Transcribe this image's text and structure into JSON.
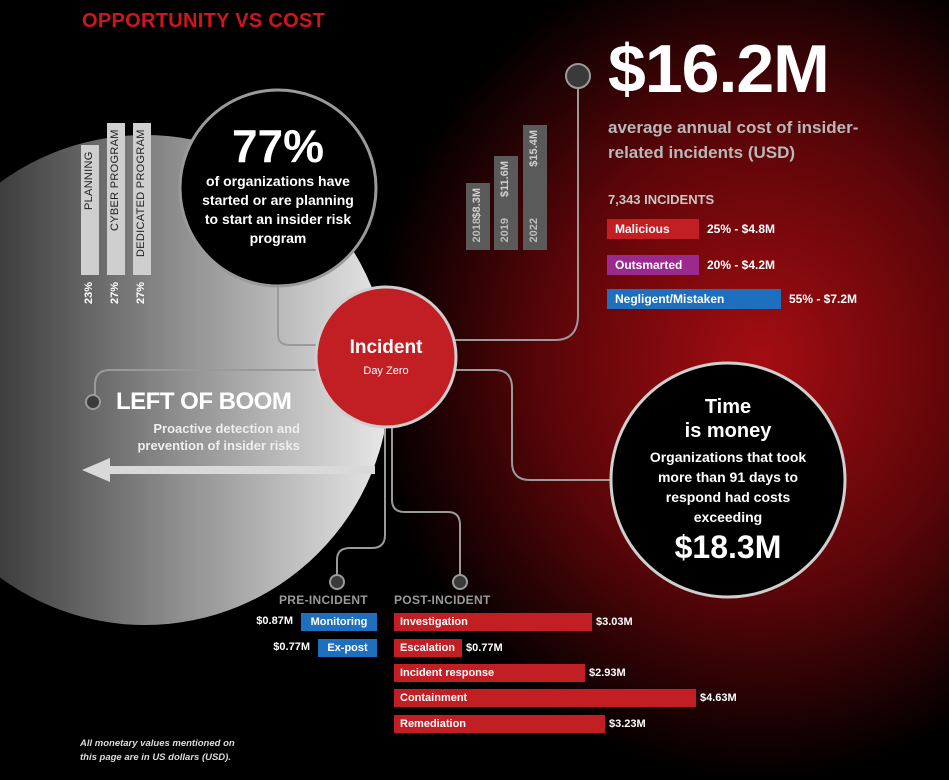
{
  "title": "OPPORTUNITY VS COST",
  "program_bars": [
    {
      "label": "PLANNING",
      "pct": "23%",
      "value": 23
    },
    {
      "label": "CYBER PROGRAM",
      "pct": "27%",
      "value": 27
    },
    {
      "label": "DEDICATED PROGRAM",
      "pct": "27%",
      "value": 27
    }
  ],
  "stat_circle": {
    "number": "77%",
    "text": "of organizations have started or are planning to start an insider risk program"
  },
  "year_bars": [
    {
      "year": "2018",
      "value_label": "$8.3M",
      "value": 8.3
    },
    {
      "year": "2019",
      "value_label": "$11.6M",
      "value": 11.6
    },
    {
      "year": "2022",
      "value_label": "$15.4M",
      "value": 15.4
    }
  ],
  "headline": {
    "amount": "$16.2M",
    "caption": "average annual cost of insider-related incidents (USD)"
  },
  "incident_breakdown": {
    "heading": "7,343 INCIDENTS",
    "items": [
      {
        "label": "Malicious",
        "value_text": "25% - $4.8M",
        "pct": 25,
        "color": "#c21f25"
      },
      {
        "label": "Outsmarted",
        "value_text": "20% - $4.2M",
        "pct": 20,
        "color": "#9b2a8f"
      },
      {
        "label": "Negligent/Mistaken",
        "value_text": "55% - $7.2M",
        "pct": 55,
        "color": "#1f6fbf"
      }
    ]
  },
  "incident_circle": {
    "title": "Incident",
    "subtitle": "Day Zero"
  },
  "left_of_boom": {
    "title": "LEFT OF BOOM",
    "text": "Proactive detection and prevention of insider risks"
  },
  "time_circle": {
    "title1": "Time",
    "title2": "is money",
    "text": "Organizations that took more than 91 days to respond had costs exceeding",
    "amount": "$18.3M"
  },
  "pre_incident": {
    "heading": "PRE-INCIDENT",
    "items": [
      {
        "label": "Monitoring",
        "value": "$0.87M"
      },
      {
        "label": "Ex-post",
        "value": "$0.77M"
      }
    ]
  },
  "post_incident": {
    "heading": "POST-INCIDENT",
    "items": [
      {
        "label": "Investigation",
        "value": "$3.03M",
        "amount": 3.03
      },
      {
        "label": "Escalation",
        "value": "$0.77M",
        "amount": 0.77
      },
      {
        "label": "Incident response",
        "value": "$2.93M",
        "amount": 2.93
      },
      {
        "label": "Containment",
        "value": "$4.63M",
        "amount": 4.63
      },
      {
        "label": "Remediation",
        "value": "$3.23M",
        "amount": 3.23
      }
    ]
  },
  "footnote": "All monetary values mentioned on this page are in US dollars (USD)."
}
